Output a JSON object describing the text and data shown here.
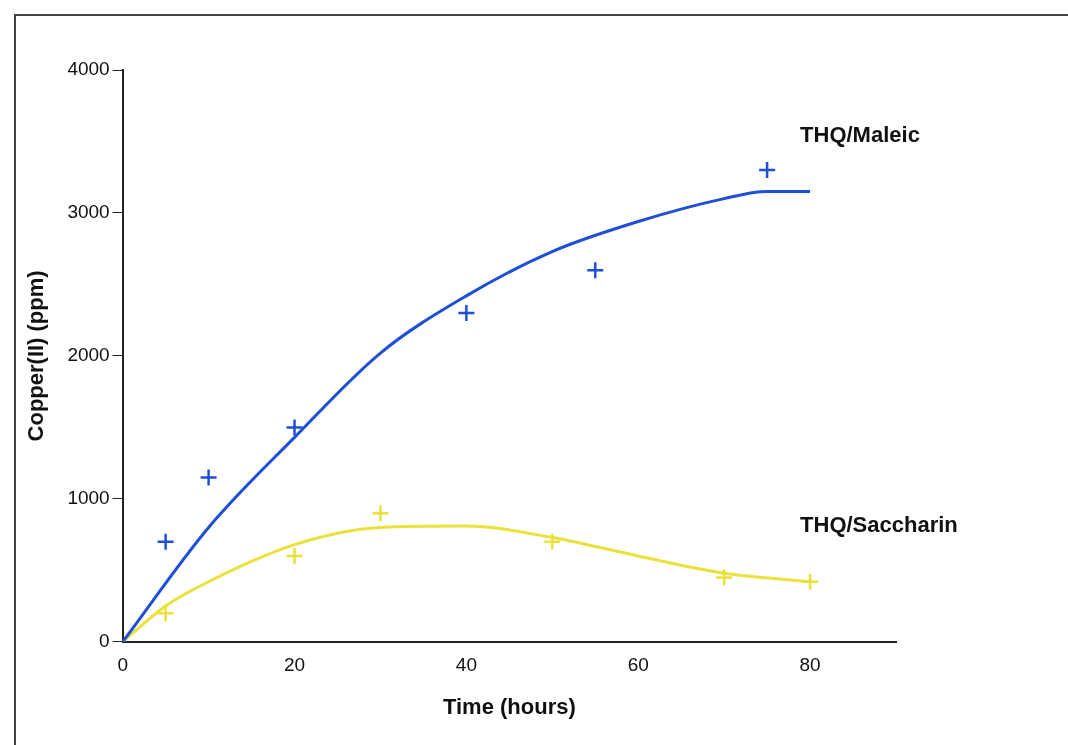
{
  "chart_data": {
    "type": "scatter",
    "xlabel": "Time (hours)",
    "ylabel": "Copper(II) (ppm)",
    "xlim": [
      0,
      90
    ],
    "xticks": [
      0,
      20,
      40,
      60,
      80
    ],
    "ylim": [
      0,
      4000
    ],
    "yticks": [
      0,
      1000,
      2000,
      3000,
      4000
    ],
    "grid": false,
    "legend": false,
    "series": [
      {
        "type": "line",
        "name": "THQ/Maleic",
        "color": "#1f4fd6",
        "marker": "none",
        "x": [
          0,
          10,
          20,
          30,
          40,
          50,
          60,
          70,
          75,
          80
        ],
        "values": [
          0,
          800,
          1430,
          2020,
          2420,
          2730,
          2940,
          3100,
          3150,
          3150
        ]
      },
      {
        "color": "#1f4fd6",
        "marker": "cross",
        "x": [
          5,
          10,
          20,
          40,
          55,
          75
        ],
        "values": [
          700,
          1150,
          1500,
          2300,
          2600,
          3300
        ]
      },
      {
        "type": "line",
        "name": "THQ/Saccharin",
        "color": "#ece13a",
        "marker": "none",
        "x": [
          0,
          5,
          10,
          20,
          30,
          40,
          50,
          60,
          70,
          80
        ],
        "values": [
          0,
          250,
          420,
          680,
          800,
          810,
          730,
          600,
          480,
          420
        ]
      },
      {
        "color": "#ece13a",
        "marker": "cross",
        "x": [
          5,
          20,
          30,
          50,
          70,
          80
        ],
        "values": [
          200,
          600,
          900,
          700,
          450,
          420
        ]
      }
    ]
  }
}
